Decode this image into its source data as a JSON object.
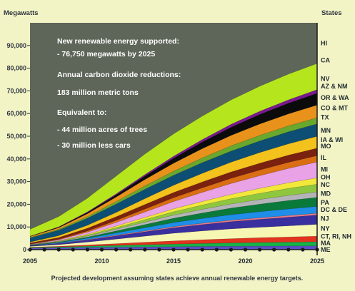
{
  "chart_data": {
    "type": "area",
    "stacked": true,
    "ylabel": "Megawatts",
    "legend_title": "States",
    "footnote": "Projected development assuming states achieve annual renewable energy targets.",
    "xlim": [
      2005,
      2025
    ],
    "ylim": [
      0,
      100000
    ],
    "x_ticks": [
      "2005",
      "2010",
      "2015",
      "2020",
      "2025"
    ],
    "y_ticks": [
      "0",
      "10,000",
      "20,000",
      "30,000",
      "40,000",
      "50,000",
      "60,000",
      "70,000",
      "80,000",
      "90,000"
    ],
    "annotations": [
      "New renewable energy supported:",
      "- 76,750 megawatts by 2025",
      "Annual carbon dioxide reductions:",
      "183 million metric tons",
      "Equivalent to:",
      "- 44 million acres of trees",
      "- 30 million less cars"
    ],
    "x": [
      2005,
      2007,
      2009,
      2011,
      2013,
      2015,
      2017,
      2019,
      2021,
      2023,
      2025
    ],
    "series": [
      {
        "name": "ME",
        "color": "#5b4fc4",
        "values": [
          700,
          850,
          1000,
          1100,
          1200,
          1300,
          1400,
          1500,
          1550,
          1600,
          1650
        ]
      },
      {
        "name": "MA",
        "color": "#16b24a",
        "values": [
          200,
          350,
          550,
          750,
          950,
          1150,
          1300,
          1450,
          1600,
          1700,
          1800
        ]
      },
      {
        "name": "CT, RI, NH",
        "color": "#e2331f",
        "values": [
          150,
          300,
          500,
          800,
          1100,
          1400,
          1650,
          1900,
          2100,
          2300,
          2500
        ]
      },
      {
        "name": "NY",
        "color": "#f7f7b4",
        "values": [
          400,
          700,
          1300,
          2000,
          2700,
          3400,
          3900,
          4300,
          4600,
          4900,
          5200
        ]
      },
      {
        "name": "NJ",
        "color": "#3a2f9e",
        "values": [
          200,
          500,
          900,
          1400,
          1900,
          2400,
          2800,
          3200,
          3500,
          3800,
          4100
        ]
      },
      {
        "name": "DC & DE",
        "color": "#e37b8a",
        "values": [
          50,
          100,
          200,
          300,
          400,
          500,
          600,
          650,
          700,
          750,
          800
        ]
      },
      {
        "name": "PA",
        "color": "#1e8ee8",
        "values": [
          150,
          300,
          600,
          1000,
          1400,
          1800,
          2100,
          2400,
          2700,
          2900,
          3000
        ]
      },
      {
        "name": "MD",
        "color": "#0a7a3a",
        "values": [
          100,
          250,
          500,
          900,
          1400,
          1900,
          2400,
          2900,
          3300,
          3700,
          4000
        ]
      },
      {
        "name": "NC",
        "color": "#b4b4b8",
        "values": [
          100,
          200,
          450,
          750,
          1050,
          1350,
          1600,
          1850,
          2050,
          2250,
          2400
        ]
      },
      {
        "name": "OH",
        "color": "#8fc63f",
        "values": [
          80,
          180,
          400,
          700,
          1100,
          1500,
          1900,
          2300,
          2700,
          3100,
          3400
        ]
      },
      {
        "name": "MI",
        "color": "#f2e83a",
        "values": [
          80,
          180,
          400,
          700,
          1000,
          1300,
          1600,
          1900,
          2200,
          2500,
          2800
        ]
      },
      {
        "name": "IL",
        "color": "#e9a2e6",
        "values": [
          150,
          400,
          900,
          1600,
          2400,
          3200,
          4000,
          4800,
          5600,
          6300,
          7000
        ]
      },
      {
        "name": "MO",
        "color": "#d96e12",
        "values": [
          100,
          250,
          550,
          900,
          1300,
          1700,
          2000,
          2300,
          2500,
          2700,
          2800
        ]
      },
      {
        "name": "IA & WI",
        "color": "#7b2110",
        "values": [
          500,
          800,
          1200,
          1600,
          2000,
          2300,
          2600,
          2800,
          3000,
          3150,
          3300
        ]
      },
      {
        "name": "MN",
        "color": "#f3c21c",
        "values": [
          400,
          800,
          1300,
          1900,
          2600,
          3200,
          3800,
          4300,
          4700,
          5000,
          5200
        ]
      },
      {
        "name": "TX",
        "color": "#0d4f74",
        "values": [
          1800,
          2400,
          3100,
          3700,
          4100,
          4400,
          4700,
          4900,
          5100,
          5300,
          5500
        ]
      },
      {
        "name": "CO & MT",
        "color": "#6aa82d",
        "values": [
          200,
          400,
          700,
          1100,
          1500,
          1800,
          2100,
          2300,
          2500,
          2600,
          2700
        ]
      },
      {
        "name": "OR & WA",
        "color": "#e8921c",
        "values": [
          400,
          700,
          1300,
          2000,
          2800,
          3500,
          4100,
          4600,
          5000,
          5300,
          5600
        ]
      },
      {
        "name": "AZ & NM",
        "color": "#0b0b0b",
        "values": [
          100,
          250,
          500,
          900,
          1500,
          2200,
          2900,
          3600,
          4200,
          4700,
          5200
        ]
      },
      {
        "name": "NV",
        "color": "#7a1a8e",
        "values": [
          80,
          150,
          300,
          500,
          700,
          900,
          1100,
          1300,
          1400,
          1500,
          1600
        ]
      },
      {
        "name": "CA",
        "color": "#b5e61d",
        "values": [
          3000,
          4500,
          6000,
          7800,
          9000,
          9800,
          10300,
          10700,
          11000,
          11300,
          11500
        ]
      },
      {
        "name": "HI",
        "color": "#b5e61d",
        "values": [
          0,
          0,
          0,
          0,
          0,
          0,
          0,
          0,
          0,
          0,
          0
        ]
      }
    ],
    "label_values": {
      "HI": 91000,
      "CA": 83500,
      "NV": 75300,
      "AZ & NM": 72000,
      "OR & WA": 67000,
      "CO & MT": 62500,
      "TX": 58300,
      "MN": 52500,
      "IA & WI": 48400,
      "MO": 45600,
      "IL": 40600,
      "MI": 35400,
      "OH": 31900,
      "NC": 28600,
      "MD": 24700,
      "PA": 20700,
      "DC & DE": 17600,
      "NJ": 13700,
      "NY": 9300,
      "CT, RI, NH": 5800,
      "MA": 2800,
      "ME": 0
    },
    "colors": {
      "plot_background": "#5e6659",
      "page_background": "#f3f4c6",
      "annotation_text": "#ffffff"
    }
  }
}
